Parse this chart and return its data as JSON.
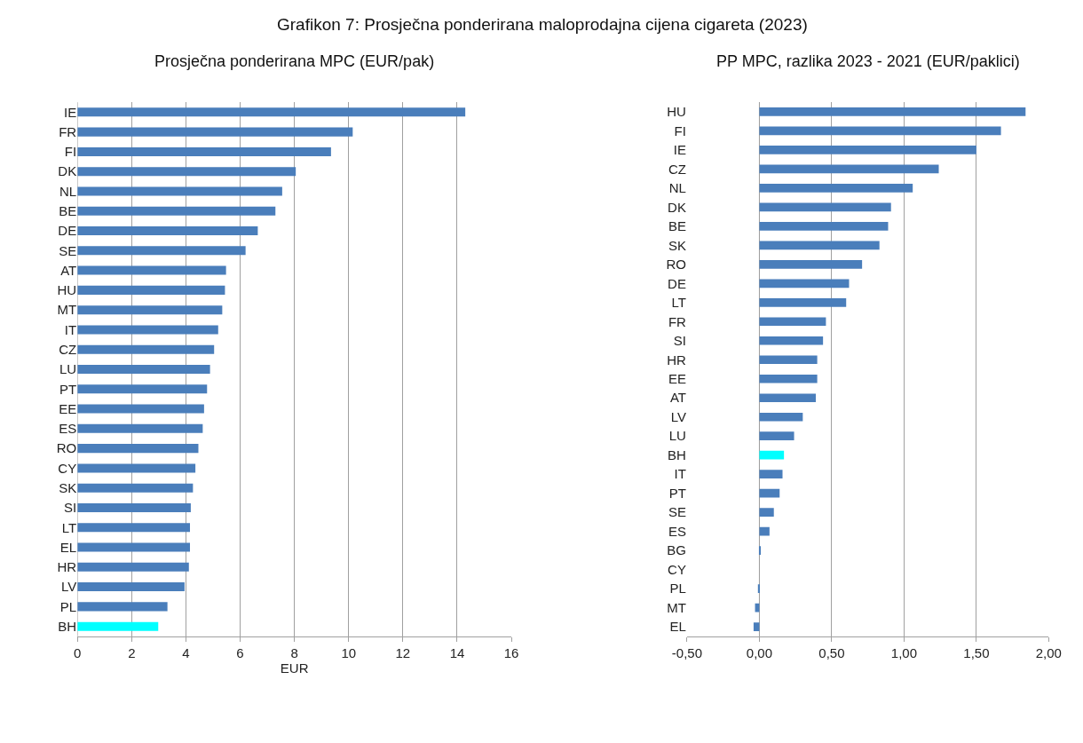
{
  "chart_data": [
    {
      "type": "bar",
      "orientation": "horizontal",
      "title": "Prosječna ponderirana MPC (EUR/pak)",
      "xlabel": "EUR",
      "annotations": [
        "Grafikon 7: Prosječna ponderirana maloprodajna cijena cigareta (2023)"
      ],
      "categories": [
        "IE",
        "FR",
        "FI",
        "DK",
        "NL",
        "BE",
        "DE",
        "SE",
        "AT",
        "HU",
        "MT",
        "IT",
        "CZ",
        "LU",
        "PT",
        "EE",
        "ES",
        "RO",
        "CY",
        "SK",
        "SI",
        "LT",
        "EL",
        "HR",
        "LV",
        "PL",
        "BH"
      ],
      "values": [
        14.3,
        10.15,
        9.35,
        8.05,
        7.55,
        7.3,
        6.65,
        6.2,
        5.48,
        5.44,
        5.34,
        5.19,
        5.04,
        4.89,
        4.78,
        4.67,
        4.62,
        4.46,
        4.35,
        4.26,
        4.18,
        4.15,
        4.15,
        4.11,
        3.95,
        3.32,
        2.98
      ],
      "colors": [
        "#4a7ebb",
        "#4a7ebb",
        "#4a7ebb",
        "#4a7ebb",
        "#4a7ebb",
        "#4a7ebb",
        "#4a7ebb",
        "#4a7ebb",
        "#4a7ebb",
        "#4a7ebb",
        "#4a7ebb",
        "#4a7ebb",
        "#4a7ebb",
        "#4a7ebb",
        "#4a7ebb",
        "#4a7ebb",
        "#4a7ebb",
        "#4a7ebb",
        "#4a7ebb",
        "#4a7ebb",
        "#4a7ebb",
        "#4a7ebb",
        "#4a7ebb",
        "#4a7ebb",
        "#4a7ebb",
        "#4a7ebb",
        "#00ffff"
      ],
      "xlim": [
        0,
        16
      ],
      "xticks": [
        0,
        2,
        4,
        6,
        8,
        10,
        12,
        14,
        16
      ],
      "grid": "x"
    },
    {
      "type": "bar",
      "orientation": "horizontal",
      "title": "PP MPC, razlika 2023 - 2021 (EUR/paklici)",
      "categories": [
        "HU",
        "FI",
        "IE",
        "CZ",
        "NL",
        "DK",
        "BE",
        "SK",
        "RO",
        "DE",
        "LT",
        "FR",
        "SI",
        "HR",
        "EE",
        "AT",
        "LV",
        "LU",
        "BH",
        "IT",
        "PT",
        "SE",
        "ES",
        "BG",
        "CY",
        "PL",
        "MT",
        "EL"
      ],
      "values": [
        1.84,
        1.67,
        1.5,
        1.24,
        1.06,
        0.91,
        0.89,
        0.83,
        0.71,
        0.62,
        0.6,
        0.46,
        0.44,
        0.4,
        0.4,
        0.39,
        0.3,
        0.24,
        0.17,
        0.16,
        0.14,
        0.1,
        0.07,
        0.01,
        0,
        -0.01,
        -0.03,
        -0.04
      ],
      "colors": [
        "#4a7ebb",
        "#4a7ebb",
        "#4a7ebb",
        "#4a7ebb",
        "#4a7ebb",
        "#4a7ebb",
        "#4a7ebb",
        "#4a7ebb",
        "#4a7ebb",
        "#4a7ebb",
        "#4a7ebb",
        "#4a7ebb",
        "#4a7ebb",
        "#4a7ebb",
        "#4a7ebb",
        "#4a7ebb",
        "#4a7ebb",
        "#4a7ebb",
        "#00ffff",
        "#4a7ebb",
        "#4a7ebb",
        "#4a7ebb",
        "#4a7ebb",
        "#4a7ebb",
        "#4a7ebb",
        "#4a7ebb",
        "#4a7ebb",
        "#4a7ebb"
      ],
      "xlim": [
        -0.5,
        2.0
      ],
      "xticks": [
        {
          "value": -0.5,
          "label": "-0,50"
        },
        {
          "value": 0,
          "label": "0,00"
        },
        {
          "value": 0.5,
          "label": "0,50"
        },
        {
          "value": 1.0,
          "label": "1,00"
        },
        {
          "value": 1.5,
          "label": "1,50"
        },
        {
          "value": 2.0,
          "label": "2,00"
        }
      ],
      "grid": "x"
    }
  ]
}
